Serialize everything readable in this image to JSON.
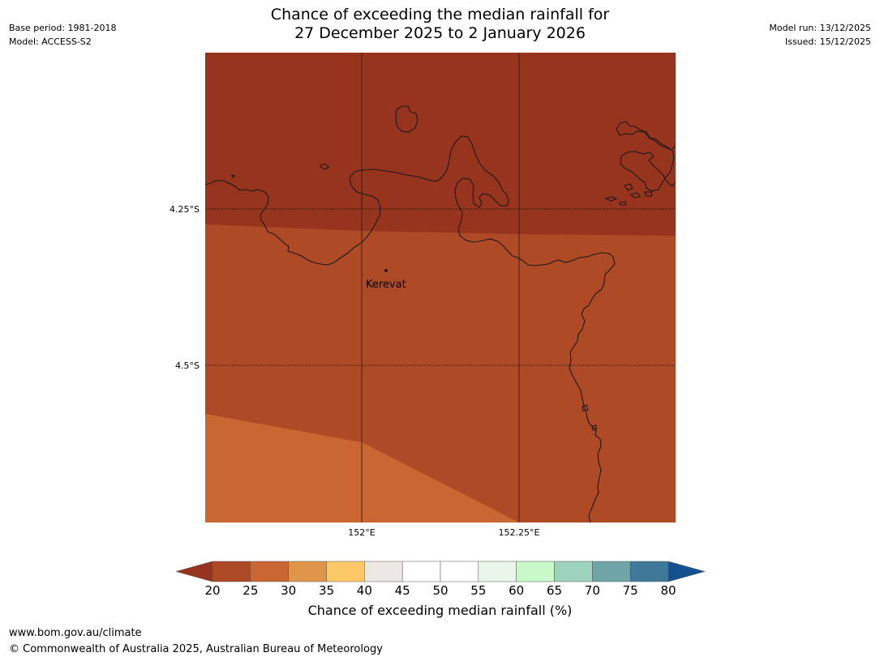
{
  "title": {
    "line1": "Chance of exceeding the median rainfall for",
    "line2": "27 December 2025 to 2 January 2026"
  },
  "meta": {
    "base_period": "Base period: 1981-2018",
    "model": "Model: ACCESS-S2",
    "model_run": "Model run: 13/12/2025",
    "issued": "Issued: 15/12/2025"
  },
  "map": {
    "lat_labels": [
      "4.25°S",
      "4.5°S"
    ],
    "lon_labels": [
      "152°E",
      "152.25°E"
    ],
    "place": {
      "name": "Kerevat"
    },
    "colors": {
      "band_20_25": "#97341e",
      "band_25_30": "#af4a26",
      "band_30_35": "#c96632",
      "coastline": "#1a1a1a",
      "gridline": "#3a1c12"
    }
  },
  "colorbar": {
    "title": "Chance of exceeding median rainfall (%)",
    "ticks": [
      "20",
      "25",
      "30",
      "35",
      "40",
      "45",
      "50",
      "55",
      "60",
      "65",
      "70",
      "75",
      "80"
    ],
    "low_extend_color": "#97341e",
    "high_extend_color": "#13508f",
    "segment_colors": [
      "#af4a26",
      "#c96632",
      "#e0964a",
      "#fdc966",
      "#ece9e4",
      "#ffffff",
      "#ffffff",
      "#eaf6ea",
      "#c9f9c9",
      "#9dd2bb",
      "#70a5a8",
      "#3f7898"
    ]
  },
  "footer": {
    "url": "www.bom.gov.au/climate",
    "copyright": "© Commonwealth of Australia 2025, Australian Bureau of Meteorology"
  }
}
